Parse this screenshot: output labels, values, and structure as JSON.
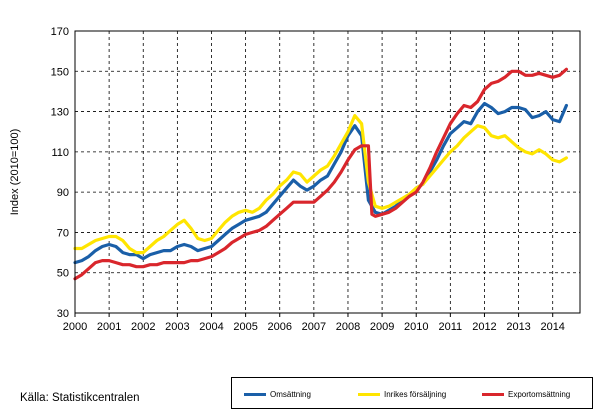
{
  "source_text": "Källa: Statistikcentralen",
  "colors": {
    "series1": "#1a5fa8",
    "series2": "#ffe500",
    "series3": "#d9262c",
    "grid": "#000000"
  },
  "chart_data": {
    "type": "line",
    "xlabel": "",
    "ylabel": "Index (2010=100)",
    "ylim": [
      30,
      170
    ],
    "yticks": [
      30,
      50,
      70,
      90,
      110,
      130,
      150,
      170
    ],
    "xlim": [
      2000,
      2014.8
    ],
    "xticks": [
      "2000",
      "2001",
      "2002",
      "2003",
      "2004",
      "2005",
      "2006",
      "2007",
      "2008",
      "2009",
      "2010",
      "2011",
      "2012",
      "2013",
      "2014"
    ],
    "grid": "dashed major gridlines on both axes",
    "legend": "bottom-right",
    "series": [
      {
        "name": "Omsättning",
        "color": "#1a5fa8",
        "points": [
          [
            2000.0,
            55
          ],
          [
            2000.2,
            56
          ],
          [
            2000.4,
            58
          ],
          [
            2000.6,
            61
          ],
          [
            2000.8,
            63
          ],
          [
            2001.0,
            64
          ],
          [
            2001.2,
            63
          ],
          [
            2001.4,
            60
          ],
          [
            2001.6,
            59
          ],
          [
            2001.8,
            59
          ],
          [
            2002.0,
            57
          ],
          [
            2002.2,
            59
          ],
          [
            2002.4,
            60
          ],
          [
            2002.6,
            61
          ],
          [
            2002.8,
            61
          ],
          [
            2003.0,
            63
          ],
          [
            2003.2,
            64
          ],
          [
            2003.4,
            63
          ],
          [
            2003.6,
            61
          ],
          [
            2003.8,
            62
          ],
          [
            2004.0,
            63
          ],
          [
            2004.2,
            66
          ],
          [
            2004.4,
            69
          ],
          [
            2004.6,
            72
          ],
          [
            2004.8,
            74
          ],
          [
            2005.0,
            76
          ],
          [
            2005.2,
            77
          ],
          [
            2005.4,
            78
          ],
          [
            2005.6,
            80
          ],
          [
            2005.8,
            84
          ],
          [
            2006.0,
            88
          ],
          [
            2006.2,
            92
          ],
          [
            2006.4,
            96
          ],
          [
            2006.6,
            93
          ],
          [
            2006.8,
            91
          ],
          [
            2007.0,
            93
          ],
          [
            2007.2,
            96
          ],
          [
            2007.4,
            98
          ],
          [
            2007.6,
            104
          ],
          [
            2007.8,
            110
          ],
          [
            2008.0,
            118
          ],
          [
            2008.2,
            123
          ],
          [
            2008.4,
            118
          ],
          [
            2008.6,
            86
          ],
          [
            2008.8,
            80
          ],
          [
            2009.0,
            79
          ],
          [
            2009.2,
            81
          ],
          [
            2009.4,
            83
          ],
          [
            2009.6,
            86
          ],
          [
            2009.8,
            88
          ],
          [
            2010.0,
            92
          ],
          [
            2010.2,
            94
          ],
          [
            2010.4,
            100
          ],
          [
            2010.6,
            106
          ],
          [
            2010.8,
            113
          ],
          [
            2011.0,
            119
          ],
          [
            2011.2,
            122
          ],
          [
            2011.4,
            125
          ],
          [
            2011.6,
            124
          ],
          [
            2011.8,
            130
          ],
          [
            2012.0,
            134
          ],
          [
            2012.2,
            132
          ],
          [
            2012.4,
            129
          ],
          [
            2012.6,
            130
          ],
          [
            2012.8,
            132
          ],
          [
            2013.0,
            132
          ],
          [
            2013.2,
            131
          ],
          [
            2013.4,
            127
          ],
          [
            2013.6,
            128
          ],
          [
            2013.8,
            130
          ],
          [
            2014.0,
            126
          ],
          [
            2014.2,
            125
          ],
          [
            2014.4,
            133
          ]
        ]
      },
      {
        "name": "Inrikes försäljning",
        "color": "#ffe500",
        "points": [
          [
            2000.0,
            62
          ],
          [
            2000.2,
            62
          ],
          [
            2000.4,
            64
          ],
          [
            2000.6,
            66
          ],
          [
            2000.8,
            67
          ],
          [
            2001.0,
            68
          ],
          [
            2001.2,
            68
          ],
          [
            2001.4,
            66
          ],
          [
            2001.6,
            62
          ],
          [
            2001.8,
            60
          ],
          [
            2002.0,
            60
          ],
          [
            2002.2,
            63
          ],
          [
            2002.4,
            66
          ],
          [
            2002.6,
            68
          ],
          [
            2002.8,
            71
          ],
          [
            2003.0,
            74
          ],
          [
            2003.2,
            76
          ],
          [
            2003.4,
            72
          ],
          [
            2003.6,
            67
          ],
          [
            2003.8,
            66
          ],
          [
            2004.0,
            67
          ],
          [
            2004.2,
            71
          ],
          [
            2004.4,
            75
          ],
          [
            2004.6,
            78
          ],
          [
            2004.8,
            80
          ],
          [
            2005.0,
            81
          ],
          [
            2005.2,
            80
          ],
          [
            2005.4,
            82
          ],
          [
            2005.6,
            86
          ],
          [
            2005.8,
            89
          ],
          [
            2006.0,
            93
          ],
          [
            2006.2,
            96
          ],
          [
            2006.4,
            100
          ],
          [
            2006.6,
            99
          ],
          [
            2006.8,
            95
          ],
          [
            2007.0,
            98
          ],
          [
            2007.2,
            101
          ],
          [
            2007.4,
            103
          ],
          [
            2007.6,
            108
          ],
          [
            2007.8,
            114
          ],
          [
            2008.0,
            120
          ],
          [
            2008.2,
            128
          ],
          [
            2008.4,
            124
          ],
          [
            2008.6,
            95
          ],
          [
            2008.8,
            83
          ],
          [
            2009.0,
            82
          ],
          [
            2009.2,
            83
          ],
          [
            2009.4,
            85
          ],
          [
            2009.6,
            87
          ],
          [
            2009.8,
            89
          ],
          [
            2010.0,
            92
          ],
          [
            2010.2,
            94
          ],
          [
            2010.4,
            98
          ],
          [
            2010.6,
            102
          ],
          [
            2010.8,
            106
          ],
          [
            2011.0,
            110
          ],
          [
            2011.2,
            113
          ],
          [
            2011.4,
            117
          ],
          [
            2011.6,
            120
          ],
          [
            2011.8,
            123
          ],
          [
            2012.0,
            122
          ],
          [
            2012.2,
            118
          ],
          [
            2012.4,
            117
          ],
          [
            2012.6,
            118
          ],
          [
            2012.8,
            115
          ],
          [
            2013.0,
            112
          ],
          [
            2013.2,
            110
          ],
          [
            2013.4,
            109
          ],
          [
            2013.6,
            111
          ],
          [
            2013.8,
            109
          ],
          [
            2014.0,
            106
          ],
          [
            2014.2,
            105
          ],
          [
            2014.4,
            107
          ]
        ]
      },
      {
        "name": "Exportomsättning",
        "color": "#d9262c",
        "points": [
          [
            2000.0,
            47
          ],
          [
            2000.2,
            49
          ],
          [
            2000.4,
            52
          ],
          [
            2000.6,
            55
          ],
          [
            2000.8,
            56
          ],
          [
            2001.0,
            56
          ],
          [
            2001.2,
            55
          ],
          [
            2001.4,
            54
          ],
          [
            2001.6,
            54
          ],
          [
            2001.8,
            53
          ],
          [
            2002.0,
            53
          ],
          [
            2002.2,
            54
          ],
          [
            2002.4,
            54
          ],
          [
            2002.6,
            55
          ],
          [
            2002.8,
            55
          ],
          [
            2003.0,
            55
          ],
          [
            2003.2,
            55
          ],
          [
            2003.4,
            56
          ],
          [
            2003.6,
            56
          ],
          [
            2003.8,
            57
          ],
          [
            2004.0,
            58
          ],
          [
            2004.2,
            60
          ],
          [
            2004.4,
            62
          ],
          [
            2004.6,
            65
          ],
          [
            2004.8,
            67
          ],
          [
            2005.0,
            69
          ],
          [
            2005.2,
            70
          ],
          [
            2005.4,
            71
          ],
          [
            2005.6,
            73
          ],
          [
            2005.8,
            76
          ],
          [
            2006.0,
            79
          ],
          [
            2006.2,
            82
          ],
          [
            2006.4,
            85
          ],
          [
            2006.6,
            85
          ],
          [
            2006.8,
            85
          ],
          [
            2007.0,
            85
          ],
          [
            2007.2,
            88
          ],
          [
            2007.4,
            91
          ],
          [
            2007.6,
            95
          ],
          [
            2007.8,
            100
          ],
          [
            2008.0,
            106
          ],
          [
            2008.2,
            111
          ],
          [
            2008.4,
            113
          ],
          [
            2008.6,
            113
          ],
          [
            2008.7,
            79
          ],
          [
            2008.8,
            78
          ],
          [
            2009.0,
            79
          ],
          [
            2009.2,
            80
          ],
          [
            2009.4,
            82
          ],
          [
            2009.6,
            85
          ],
          [
            2009.8,
            88
          ],
          [
            2010.0,
            90
          ],
          [
            2010.2,
            95
          ],
          [
            2010.4,
            102
          ],
          [
            2010.6,
            110
          ],
          [
            2010.8,
            117
          ],
          [
            2011.0,
            124
          ],
          [
            2011.2,
            129
          ],
          [
            2011.4,
            133
          ],
          [
            2011.6,
            132
          ],
          [
            2011.8,
            135
          ],
          [
            2012.0,
            141
          ],
          [
            2012.2,
            144
          ],
          [
            2012.4,
            145
          ],
          [
            2012.6,
            147
          ],
          [
            2012.8,
            150
          ],
          [
            2013.0,
            150
          ],
          [
            2013.2,
            148
          ],
          [
            2013.4,
            148
          ],
          [
            2013.6,
            149
          ],
          [
            2013.8,
            148
          ],
          [
            2014.0,
            147
          ],
          [
            2014.2,
            148
          ],
          [
            2014.4,
            151
          ]
        ]
      }
    ]
  }
}
